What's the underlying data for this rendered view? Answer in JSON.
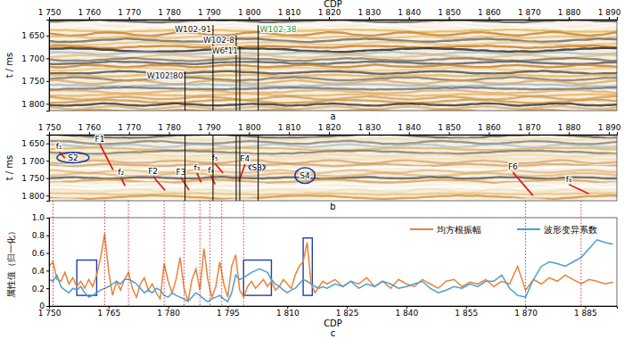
{
  "chart_data": [
    {
      "type": "seismic",
      "panel": "a",
      "xlabel": "CDP",
      "ylabel": "t / ms",
      "xlim": [
        1750,
        1892
      ],
      "xticks": [
        {
          "value": 1750,
          "label": "1 750"
        },
        {
          "value": 1760,
          "label": "1 760"
        },
        {
          "value": 1770,
          "label": "1 770"
        },
        {
          "value": 1780,
          "label": "1 780"
        },
        {
          "value": 1790,
          "label": "1 790"
        },
        {
          "value": 1800,
          "label": "1 800"
        },
        {
          "value": 1810,
          "label": "1 810"
        },
        {
          "value": 1820,
          "label": "1 820"
        },
        {
          "value": 1830,
          "label": "1 830"
        },
        {
          "value": 1840,
          "label": "1 840"
        },
        {
          "value": 1850,
          "label": "1 850"
        },
        {
          "value": 1860,
          "label": "1 860"
        },
        {
          "value": 1870,
          "label": "1 870"
        },
        {
          "value": 1880,
          "label": "1 880"
        },
        {
          "value": 1890,
          "label": "1 890"
        }
      ],
      "ylim": [
        1615,
        1815
      ],
      "yticks": [
        {
          "value": 1650,
          "label": "1 650"
        },
        {
          "value": 1700,
          "label": "1 700"
        },
        {
          "value": 1750,
          "label": "1 750"
        },
        {
          "value": 1800,
          "label": "1 800"
        }
      ],
      "wells": [
        {
          "name": "W102-80",
          "cdp": 1784,
          "color": "#111111"
        },
        {
          "name": "W102-91",
          "cdp": 1791,
          "color": "#111111"
        },
        {
          "name": "W102-8",
          "cdp": 1796.8,
          "color": "#111111"
        },
        {
          "name": "W6-11",
          "cdp": 1797.7,
          "color": "#111111"
        },
        {
          "name": "W102-38",
          "cdp": 1802.3,
          "color": "#1a9b3a"
        }
      ]
    },
    {
      "type": "seismic",
      "panel": "b",
      "ylabel": "t / ms",
      "xlim": [
        1750,
        1892
      ],
      "xticks": [
        {
          "value": 1750,
          "label": "1 750"
        },
        {
          "value": 1760,
          "label": "1 760"
        },
        {
          "value": 1770,
          "label": "1 770"
        },
        {
          "value": 1780,
          "label": "1 780"
        },
        {
          "value": 1790,
          "label": "1 790"
        },
        {
          "value": 1800,
          "label": "1 800"
        },
        {
          "value": 1810,
          "label": "1 810"
        },
        {
          "value": 1820,
          "label": "1 820"
        },
        {
          "value": 1830,
          "label": "1 830"
        },
        {
          "value": 1840,
          "label": "1 840"
        },
        {
          "value": 1850,
          "label": "1 850"
        },
        {
          "value": 1860,
          "label": "1 860"
        },
        {
          "value": 1870,
          "label": "1 870"
        },
        {
          "value": 1880,
          "label": "1 880"
        },
        {
          "value": 1890,
          "label": "1 890"
        }
      ],
      "ylim": [
        1625,
        1815
      ],
      "yticks": [
        {
          "value": 1650,
          "label": "1 650"
        },
        {
          "value": 1700,
          "label": "1 700"
        },
        {
          "value": 1750,
          "label": "1 750"
        },
        {
          "value": 1800,
          "label": "1 800"
        }
      ],
      "faults": [
        {
          "name": "f₁",
          "cdp": [
            1752.5,
            1754
          ],
          "t": [
            1675,
            1692
          ]
        },
        {
          "name": "F1",
          "cdp": [
            1762.7,
            1766
          ],
          "t": [
            1652,
            1726
          ]
        },
        {
          "name": "f₂",
          "cdp": [
            1768,
            1769
          ],
          "t": [
            1748,
            1772
          ]
        },
        {
          "name": "F2",
          "cdp": [
            1776,
            1779
          ],
          "t": [
            1745,
            1785
          ]
        },
        {
          "name": "F3",
          "cdp": [
            1783,
            1785
          ],
          "t": [
            1748,
            1784
          ]
        },
        {
          "name": "f₃",
          "cdp": [
            1787,
            1788
          ],
          "t": [
            1735,
            1762
          ]
        },
        {
          "name": "f₅",
          "cdp": [
            1791.5,
            1793.5
          ],
          "t": [
            1708,
            1735
          ]
        },
        {
          "name": "f₄",
          "cdp": [
            1790.5,
            1791.5
          ],
          "t": [
            1742,
            1768
          ]
        },
        {
          "name": "F4",
          "cdp": [
            1799,
            1797.5
          ],
          "t": [
            1710,
            1760
          ]
        },
        {
          "name": "F6",
          "cdp": [
            1866,
            1871
          ],
          "t": [
            1733,
            1800
          ]
        },
        {
          "name": "f₆",
          "cdp": [
            1880,
            1885
          ],
          "t": [
            1768,
            1795
          ]
        }
      ],
      "anomalies": [
        {
          "name": "S2",
          "cdp": [
            1752,
            1760
          ],
          "t": [
            1676,
            1706
          ]
        },
        {
          "name": "S3",
          "cdp": [
            1800,
            1804
          ],
          "t": [
            1709,
            1729
          ]
        },
        {
          "name": "S4",
          "cdp": [
            1811.5,
            1816.5
          ],
          "t": [
            1720,
            1765
          ]
        }
      ]
    },
    {
      "type": "line",
      "panel": "c",
      "xlabel": "CDP",
      "ylabel": "属性值（归一化）",
      "xlim": [
        1750,
        1893
      ],
      "xticks": [
        {
          "value": 1750,
          "label": "1 750"
        },
        {
          "value": 1765,
          "label": "1 765"
        },
        {
          "value": 1780,
          "label": "1 780"
        },
        {
          "value": 1795,
          "label": "1 795"
        },
        {
          "value": 1810,
          "label": "1 810"
        },
        {
          "value": 1825,
          "label": "1 825"
        },
        {
          "value": 1840,
          "label": "1 840"
        },
        {
          "value": 1855,
          "label": "1 855"
        },
        {
          "value": 1870,
          "label": "1 870"
        },
        {
          "value": 1885,
          "label": "1 885"
        }
      ],
      "ylim": [
        0,
        1
      ],
      "yticks": [
        0,
        0.2,
        0.4,
        0.6,
        0.8,
        {
          "value": 1,
          "label": "1.0"
        }
      ],
      "legend": "top-right",
      "x": [
        1750,
        1751,
        1752,
        1753,
        1754,
        1755,
        1756,
        1757,
        1758,
        1759,
        1760,
        1761,
        1762,
        1763,
        1764,
        1765,
        1766,
        1767,
        1768,
        1769,
        1770,
        1771,
        1772,
        1773,
        1774,
        1775,
        1776,
        1777,
        1778,
        1779,
        1780,
        1781,
        1782,
        1783,
        1784,
        1785,
        1786,
        1787,
        1788,
        1789,
        1790,
        1791,
        1792,
        1793,
        1794,
        1795,
        1796,
        1797,
        1798,
        1799,
        1800,
        1801,
        1802,
        1803,
        1804,
        1805,
        1806,
        1807,
        1808,
        1809,
        1810,
        1811,
        1812,
        1813,
        1814,
        1815,
        1816,
        1817,
        1818,
        1819,
        1820,
        1822,
        1824,
        1826,
        1828,
        1830,
        1832,
        1834,
        1836,
        1838,
        1840,
        1842,
        1844,
        1846,
        1848,
        1850,
        1852,
        1854,
        1856,
        1858,
        1860,
        1862,
        1864,
        1866,
        1868,
        1870,
        1872,
        1874,
        1876,
        1878,
        1880,
        1882,
        1884,
        1886,
        1888,
        1890,
        1892
      ],
      "series": [
        {
          "name": "均方根振幅",
          "color": "#e8833a",
          "values": [
            0.45,
            0.5,
            0.3,
            0.28,
            0.38,
            0.25,
            0.32,
            0.22,
            0.28,
            0.2,
            0.3,
            0.22,
            0.35,
            0.55,
            0.82,
            0.4,
            0.12,
            0.28,
            0.18,
            0.3,
            0.38,
            0.2,
            0.1,
            0.25,
            0.32,
            0.18,
            0.25,
            0.15,
            0.08,
            0.48,
            0.28,
            0.15,
            0.3,
            0.55,
            0.2,
            0.05,
            0.3,
            0.42,
            0.18,
            0.65,
            0.3,
            0.1,
            0.22,
            0.5,
            0.25,
            0.1,
            0.45,
            0.58,
            0.18,
            0.1,
            0.22,
            0.28,
            0.2,
            0.25,
            0.3,
            0.22,
            0.28,
            0.18,
            0.22,
            0.3,
            0.25,
            0.2,
            0.35,
            0.45,
            0.5,
            0.72,
            0.25,
            0.15,
            0.22,
            0.28,
            0.25,
            0.3,
            0.22,
            0.28,
            0.25,
            0.32,
            0.22,
            0.28,
            0.2,
            0.3,
            0.25,
            0.22,
            0.3,
            0.25,
            0.2,
            0.28,
            0.3,
            0.22,
            0.27,
            0.25,
            0.3,
            0.22,
            0.28,
            0.25,
            0.45,
            0.18,
            0.3,
            0.25,
            0.32,
            0.28,
            0.35,
            0.3,
            0.25,
            0.3,
            0.28,
            0.25,
            0.27
          ]
        },
        {
          "name": "波形变异系数",
          "color": "#4a9fd4",
          "values": [
            0.3,
            0.28,
            0.35,
            0.22,
            0.18,
            0.15,
            0.2,
            0.18,
            0.22,
            0.15,
            0.1,
            0.12,
            0.15,
            0.18,
            0.2,
            0.22,
            0.25,
            0.28,
            0.25,
            0.3,
            0.3,
            0.28,
            0.25,
            0.2,
            0.15,
            0.18,
            0.15,
            0.2,
            0.18,
            0.12,
            0.1,
            0.15,
            0.12,
            0.1,
            0.08,
            0.05,
            0.1,
            0.15,
            0.12,
            0.08,
            0.05,
            0.08,
            0.1,
            0.12,
            0.08,
            0.05,
            0.15,
            0.35,
            0.3,
            0.32,
            0.35,
            0.38,
            0.4,
            0.42,
            0.4,
            0.38,
            0.3,
            0.25,
            0.22,
            0.18,
            0.15,
            0.18,
            0.2,
            0.25,
            0.3,
            0.28,
            0.25,
            0.22,
            0.2,
            0.22,
            0.2,
            0.25,
            0.22,
            0.28,
            0.2,
            0.25,
            0.22,
            0.28,
            0.25,
            0.2,
            0.22,
            0.25,
            0.28,
            0.2,
            0.15,
            0.18,
            0.22,
            0.2,
            0.25,
            0.22,
            0.28,
            0.28,
            0.35,
            0.2,
            0.12,
            0.1,
            0.3,
            0.45,
            0.5,
            0.48,
            0.45,
            0.5,
            0.55,
            0.65,
            0.75,
            0.72,
            0.7
          ]
        }
      ],
      "guides": [
        1751,
        1764,
        1770,
        1779,
        1784,
        1788,
        1790.5,
        1793.5,
        1799,
        1870,
        1884
      ],
      "boxes": [
        {
          "cdp": [
            1757,
            1762
          ],
          "value": [
            0.12,
            0.52
          ]
        },
        {
          "cdp": [
            1799,
            1806
          ],
          "value": [
            0.12,
            0.52
          ]
        },
        {
          "cdp": [
            1814,
            1816.3
          ],
          "value": [
            0.12,
            0.77
          ]
        }
      ]
    }
  ]
}
